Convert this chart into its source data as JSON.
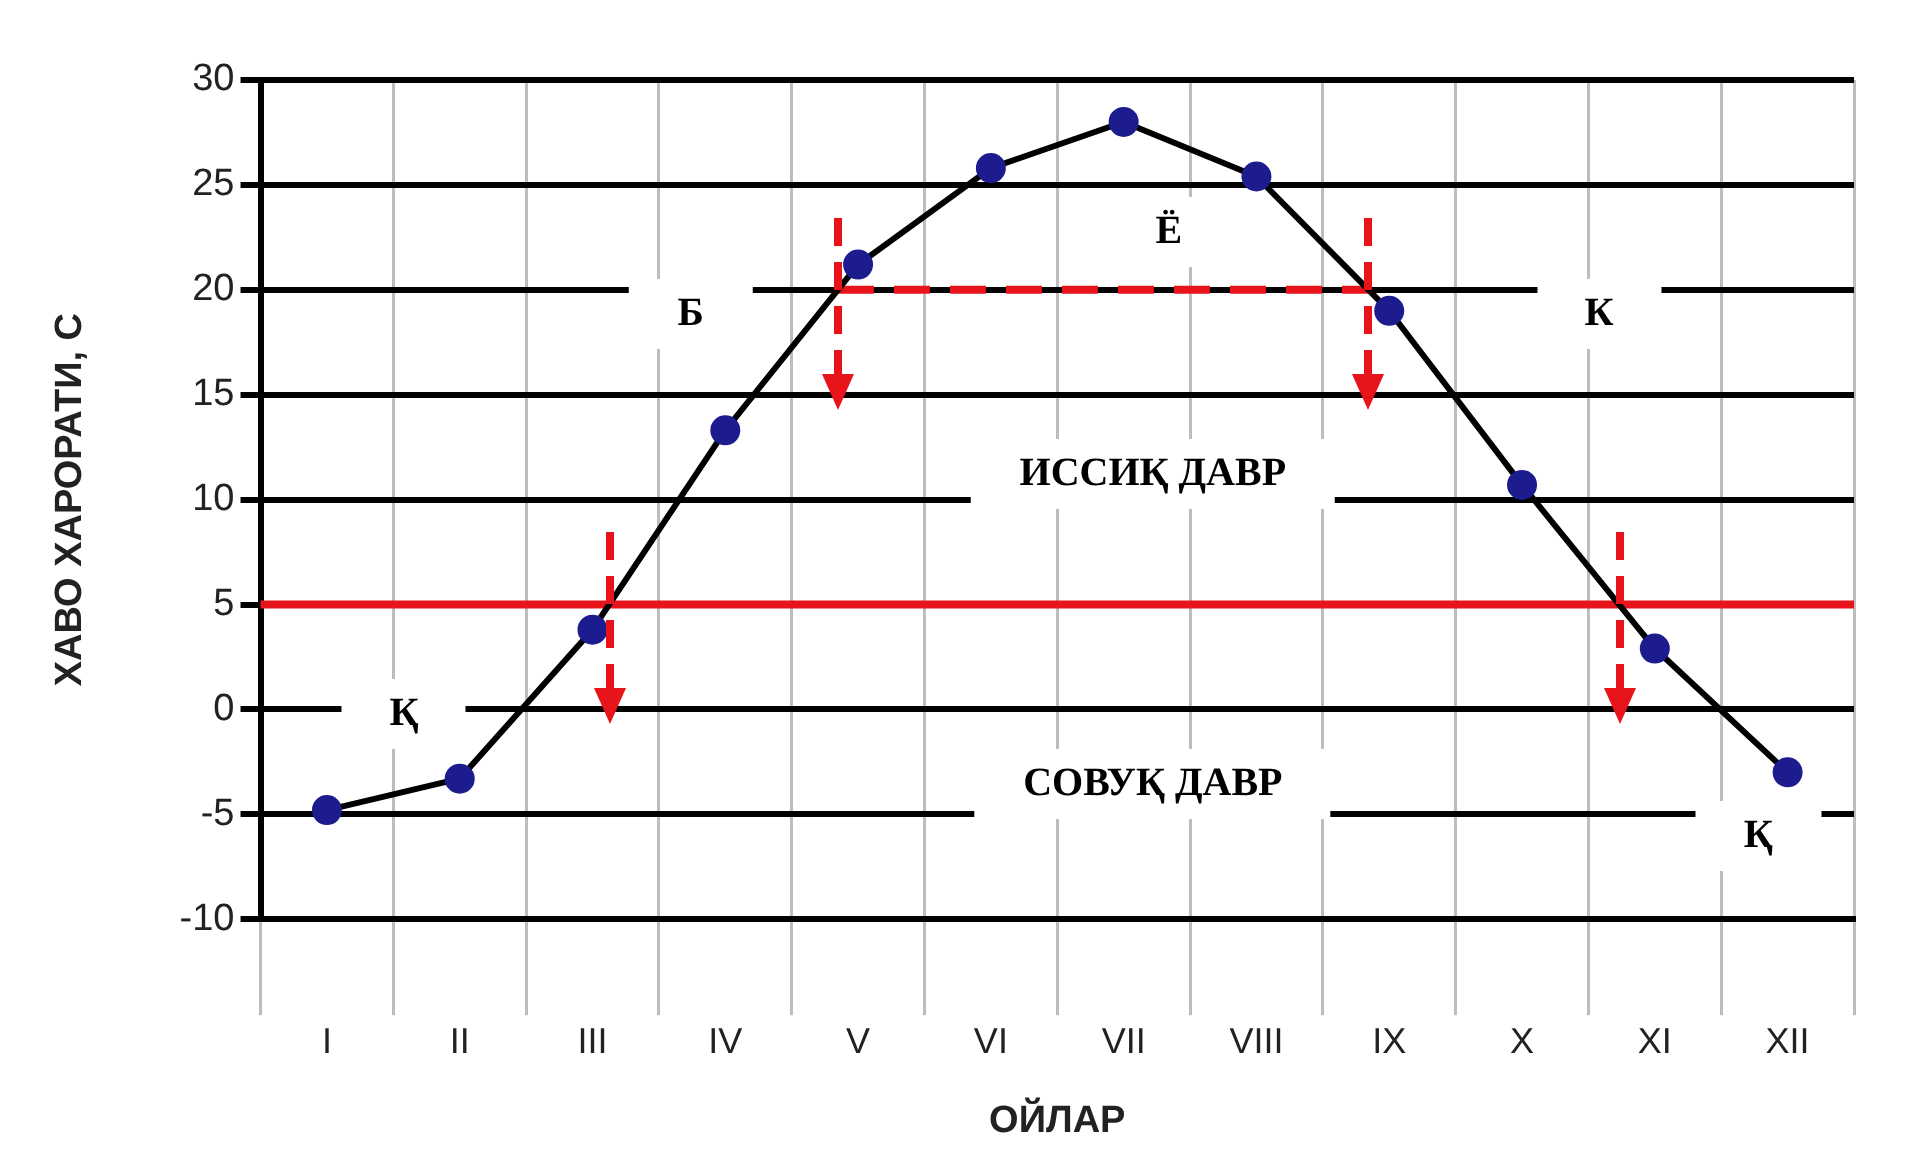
{
  "chart_data": {
    "type": "line",
    "xlabel": "ОЙЛАР",
    "ylabel": "ХАВО ХАРОРАТИ, С",
    "categories": [
      "I",
      "II",
      "III",
      "IV",
      "V",
      "VI",
      "VII",
      "VIII",
      "IX",
      "X",
      "XI",
      "XII"
    ],
    "series": [
      {
        "color": "#000000",
        "colors": [
          "#1c1c8f",
          "#1c1c8f",
          "#1c1c8f",
          "#1c1c8f",
          "#1c1c8f",
          "#1c1c8f",
          "#1c1c8f",
          "#1c1c8f",
          "#1c1c8f",
          "#1c1c8f",
          "#1c1c8f",
          "#1c1c8f"
        ],
        "values": [
          -4.8,
          -3.3,
          3.8,
          13.3,
          21.2,
          25.8,
          28,
          25.4,
          19,
          10.7,
          2.9,
          -3
        ]
      }
    ],
    "ylim": [
      -10,
      30
    ],
    "yticks": [
      -10,
      -5,
      0,
      5,
      10,
      15,
      20,
      25,
      30
    ],
    "grid": true,
    "legend": false,
    "marker": "circle",
    "line_style": "solid",
    "ref_lines": [
      {
        "axis": "y",
        "value": 5,
        "color": "#e8141b",
        "line_style": "solid"
      },
      {
        "axis": "y",
        "value": 20,
        "color": "#e8141b",
        "line_style": "dashed"
      }
    ],
    "annotations": [
      "Қ",
      "Б",
      "Ё",
      "К",
      "ИССИҚ ДАВР",
      "СОВУҚ ДАВР",
      "Қ"
    ]
  }
}
